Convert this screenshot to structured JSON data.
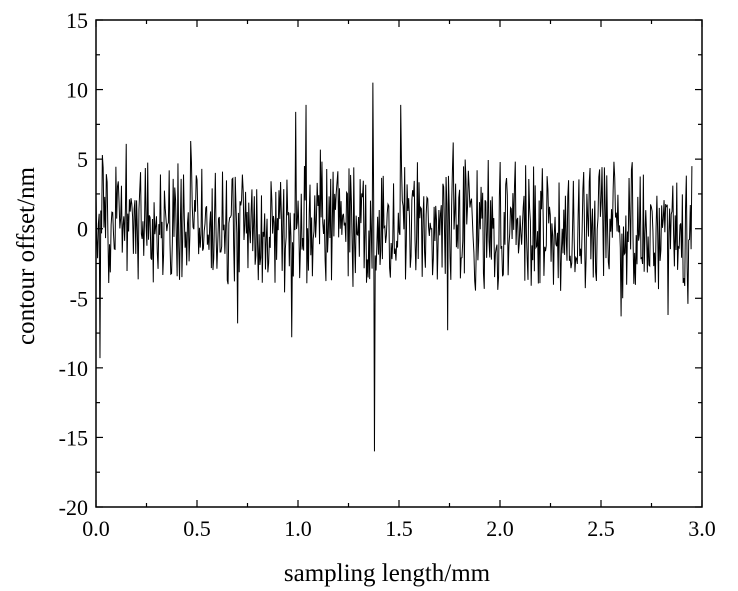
{
  "chart_data": {
    "type": "line",
    "title": "",
    "xlabel": "sampling length/mm",
    "ylabel": "contour offset/nm",
    "xlim": [
      0.0,
      3.0
    ],
    "ylim": [
      -20,
      15
    ],
    "x_ticks": [
      "0.0",
      "0.5",
      "1.0",
      "1.5",
      "2.0",
      "2.5",
      "3.0"
    ],
    "y_ticks": [
      "15",
      "10",
      "5",
      "0",
      "-5",
      "-10",
      "-15",
      "-20"
    ],
    "x_tick_values": [
      0.0,
      0.5,
      1.0,
      1.5,
      2.0,
      2.5,
      3.0
    ],
    "y_tick_values": [
      15,
      10,
      5,
      0,
      -5,
      -10,
      -15,
      -20
    ],
    "grid": false,
    "legend": "none",
    "line_color": "#000000",
    "series": [
      {
        "x_start": 0.0,
        "x_end": 2.95,
        "num_points": 750,
        "typical_range": [
          -4.5,
          5.0
        ],
        "notable_points": [
          {
            "x": 0.02,
            "y": -9.3
          },
          {
            "x": 0.03,
            "y": 5.3
          },
          {
            "x": 0.15,
            "y": 6.1
          },
          {
            "x": 0.47,
            "y": 6.3
          },
          {
            "x": 0.7,
            "y": -6.8
          },
          {
            "x": 0.97,
            "y": -7.8
          },
          {
            "x": 0.99,
            "y": 8.4
          },
          {
            "x": 1.04,
            "y": 8.9
          },
          {
            "x": 1.37,
            "y": 10.5
          },
          {
            "x": 1.38,
            "y": -16.0
          },
          {
            "x": 1.51,
            "y": 8.9
          },
          {
            "x": 1.74,
            "y": -7.3
          },
          {
            "x": 1.77,
            "y": 6.2
          },
          {
            "x": 2.6,
            "y": -6.3
          },
          {
            "x": 2.83,
            "y": -6.2
          },
          {
            "x": 2.93,
            "y": -5.4
          },
          {
            "x": 2.95,
            "y": 4.5
          }
        ]
      }
    ]
  }
}
